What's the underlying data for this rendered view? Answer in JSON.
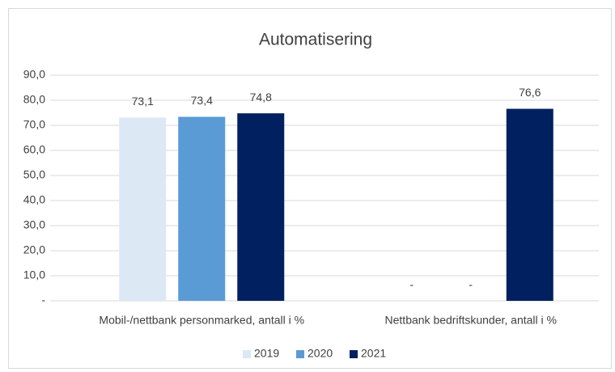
{
  "chart_data": {
    "type": "bar",
    "title": "Automatisering",
    "categories": [
      "Mobil-/nettbank personmarked, antall i %",
      "Nettbank bedriftskunder, antall i %"
    ],
    "series": [
      {
        "name": "2019",
        "color": "#dde8f5",
        "values": [
          73.1,
          null
        ],
        "value_labels": [
          "73,1",
          "-"
        ]
      },
      {
        "name": "2020",
        "color": "#5b9bd5",
        "values": [
          73.4,
          null
        ],
        "value_labels": [
          "73,4",
          "-"
        ]
      },
      {
        "name": "2021",
        "color": "#002060",
        "values": [
          74.8,
          76.6
        ],
        "value_labels": [
          "74,8",
          "76,6"
        ]
      }
    ],
    "ylim": [
      0,
      90
    ],
    "yticks": [
      {
        "value": 0,
        "label": "-"
      },
      {
        "value": 10,
        "label": "10,0"
      },
      {
        "value": 20,
        "label": "20,0"
      },
      {
        "value": 30,
        "label": "30,0"
      },
      {
        "value": 40,
        "label": "40,0"
      },
      {
        "value": 50,
        "label": "50,0"
      },
      {
        "value": 60,
        "label": "60,0"
      },
      {
        "value": 70,
        "label": "70,0"
      },
      {
        "value": 80,
        "label": "80,0"
      },
      {
        "value": 90,
        "label": "90,0"
      }
    ],
    "grid": true,
    "legend": "bottom"
  }
}
